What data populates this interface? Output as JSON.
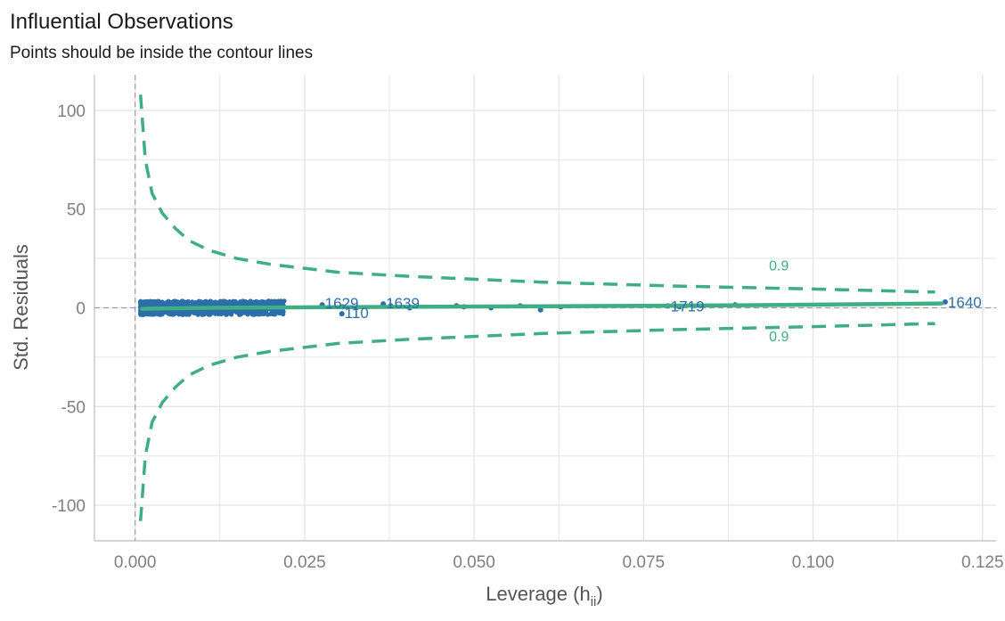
{
  "chart_data": {
    "type": "scatter",
    "title": "Influential Observations",
    "subtitle": "Points should be inside the contour lines",
    "xlabel": "Leverage (h",
    "xlabel_sub": "ii",
    "xlabel_close": ")",
    "ylabel": "Std. Residuals",
    "xlim": [
      -0.006,
      0.127
    ],
    "ylim": [
      -118,
      118
    ],
    "xticks": [
      0.0,
      0.025,
      0.05,
      0.075,
      0.1,
      0.125
    ],
    "xtick_labels": [
      "0.000",
      "0.025",
      "0.050",
      "0.075",
      "0.100",
      "0.125"
    ],
    "yticks": [
      -100,
      -50,
      0,
      50,
      100
    ],
    "ytick_labels": [
      "-100",
      "-50",
      "0",
      "50",
      "100"
    ],
    "grid": true,
    "colors": {
      "points": "#2c6ea9",
      "contour": "#3fae84",
      "smooth": "#3fae84",
      "refline": "#9e9e9e",
      "grid": "#e5e5e5"
    },
    "contour_level": 0.9,
    "contour_labels": [
      {
        "text": "0.9",
        "x": 0.0935,
        "y": 19
      },
      {
        "text": "0.9",
        "x": 0.0935,
        "y": -17
      }
    ],
    "contour_upper": [
      [
        0.0008,
        108
      ],
      [
        0.0015,
        75
      ],
      [
        0.0025,
        58
      ],
      [
        0.004,
        48
      ],
      [
        0.006,
        40
      ],
      [
        0.008,
        34
      ],
      [
        0.011,
        29
      ],
      [
        0.015,
        25
      ],
      [
        0.02,
        22
      ],
      [
        0.03,
        18
      ],
      [
        0.04,
        16
      ],
      [
        0.06,
        13
      ],
      [
        0.08,
        11
      ],
      [
        0.1,
        9.5
      ],
      [
        0.118,
        8
      ]
    ],
    "contour_lower": [
      [
        0.0008,
        -108
      ],
      [
        0.0015,
        -75
      ],
      [
        0.0025,
        -58
      ],
      [
        0.004,
        -48
      ],
      [
        0.006,
        -40
      ],
      [
        0.008,
        -34
      ],
      [
        0.011,
        -29
      ],
      [
        0.015,
        -25
      ],
      [
        0.02,
        -22
      ],
      [
        0.03,
        -18
      ],
      [
        0.04,
        -16
      ],
      [
        0.06,
        -13
      ],
      [
        0.08,
        -11
      ],
      [
        0.1,
        -9.5
      ],
      [
        0.118,
        -8
      ]
    ],
    "smooth_line": [
      [
        0.001,
        -0.5
      ],
      [
        0.01,
        0
      ],
      [
        0.03,
        0.3
      ],
      [
        0.06,
        0.8
      ],
      [
        0.09,
        1.3
      ],
      [
        0.119,
        2.2
      ]
    ],
    "points": [
      {
        "x": 0.0276,
        "y": 1.5
      },
      {
        "x": 0.0305,
        "y": -3
      },
      {
        "x": 0.0306,
        "y": 0.5
      },
      {
        "x": 0.0326,
        "y": 0
      },
      {
        "x": 0.0366,
        "y": 2
      },
      {
        "x": 0.0377,
        "y": 1
      },
      {
        "x": 0.0405,
        "y": 0
      },
      {
        "x": 0.0474,
        "y": 1
      },
      {
        "x": 0.0485,
        "y": 0.5
      },
      {
        "x": 0.0525,
        "y": 0
      },
      {
        "x": 0.0568,
        "y": 1
      },
      {
        "x": 0.0598,
        "y": -1
      },
      {
        "x": 0.0628,
        "y": 0.5
      },
      {
        "x": 0.0786,
        "y": 1
      },
      {
        "x": 0.0803,
        "y": 0.5
      },
      {
        "x": 0.0885,
        "y": 1.5
      },
      {
        "x": 0.1195,
        "y": 3
      }
    ],
    "labeled_points": [
      {
        "label": "1629",
        "x": 0.0276,
        "y": 2
      },
      {
        "label": "110",
        "x": 0.0305,
        "y": -3
      },
      {
        "label": "1639",
        "x": 0.0366,
        "y": 2
      },
      {
        "label": "1719",
        "x": 0.0786,
        "y": 0.5
      },
      {
        "label": "1640",
        "x": 0.1195,
        "y": 2.5
      }
    ],
    "point_cloud": {
      "x_range": [
        0.0008,
        0.022
      ],
      "y_range": [
        -3.5,
        3.5
      ],
      "count": 900
    }
  }
}
